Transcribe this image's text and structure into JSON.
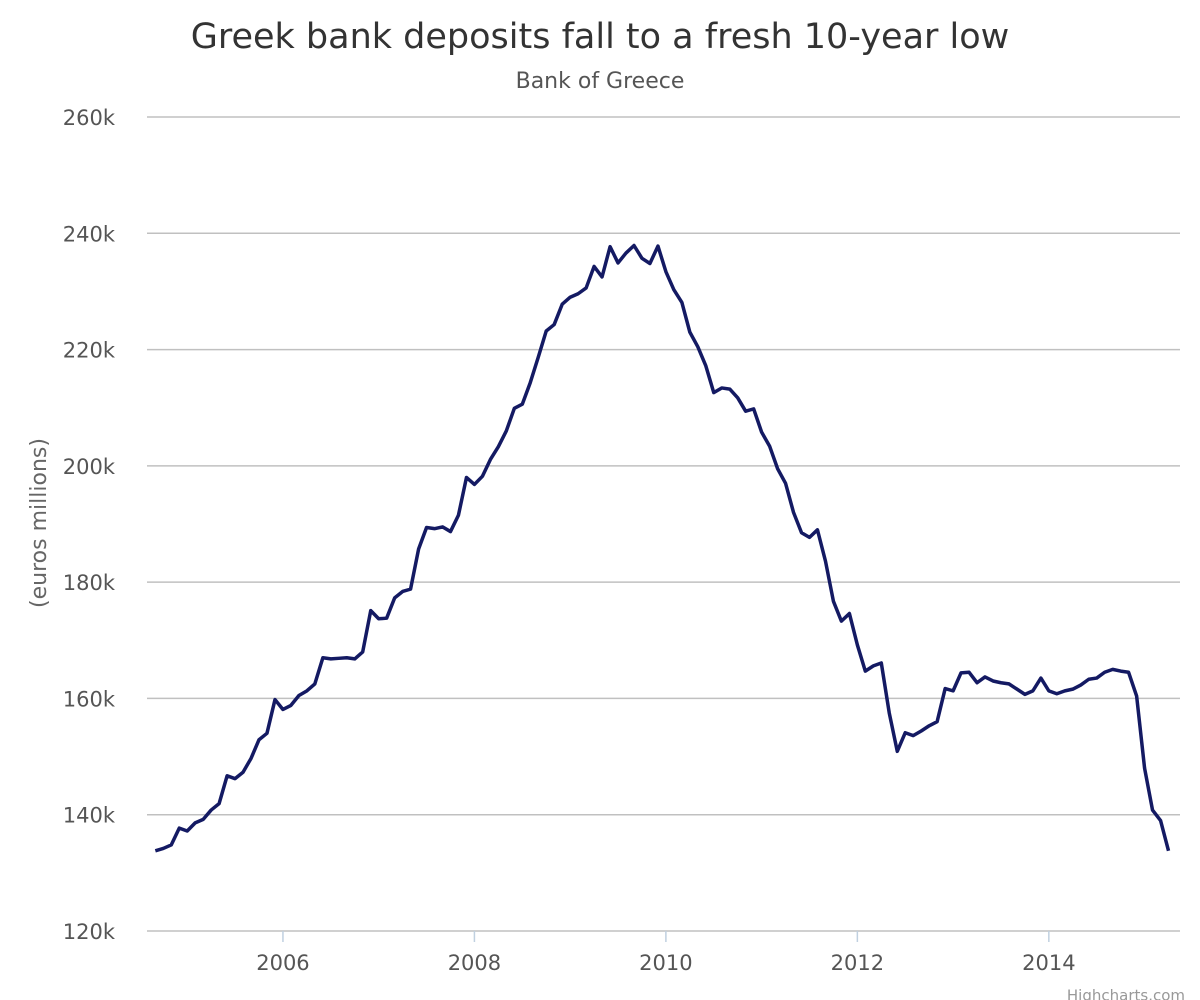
{
  "chart_data": {
    "type": "line",
    "title": "Greek bank deposits fall to a fresh 10-year low",
    "subtitle": "Bank of Greece",
    "y_axis_label": "(euros millions)",
    "credits": "Highcharts.com",
    "color": "#141a63",
    "grid": true,
    "xlim": [
      2004.58,
      2015.37
    ],
    "xticks": [
      2006,
      2008,
      2010,
      2012,
      2014
    ],
    "ylim": [
      120000,
      260000
    ],
    "yticks": [
      {
        "value": 120000,
        "label": "120k"
      },
      {
        "value": 140000,
        "label": "140k"
      },
      {
        "value": 160000,
        "label": "160k"
      },
      {
        "value": 180000,
        "label": "180k"
      },
      {
        "value": 200000,
        "label": "200k"
      },
      {
        "value": 220000,
        "label": "220k"
      },
      {
        "value": 240000,
        "label": "240k"
      },
      {
        "value": 260000,
        "label": "260k"
      }
    ],
    "x": [
      2004.667,
      2004.75,
      2004.833,
      2004.917,
      2005,
      2005.083,
      2005.167,
      2005.25,
      2005.333,
      2005.417,
      2005.5,
      2005.583,
      2005.667,
      2005.75,
      2005.833,
      2005.917,
      2006,
      2006.083,
      2006.167,
      2006.25,
      2006.333,
      2006.417,
      2006.5,
      2006.583,
      2006.667,
      2006.75,
      2006.833,
      2006.917,
      2007,
      2007.083,
      2007.167,
      2007.25,
      2007.333,
      2007.417,
      2007.5,
      2007.583,
      2007.667,
      2007.75,
      2007.833,
      2007.917,
      2008,
      2008.083,
      2008.167,
      2008.25,
      2008.333,
      2008.417,
      2008.5,
      2008.583,
      2008.667,
      2008.75,
      2008.833,
      2008.917,
      2009,
      2009.083,
      2009.167,
      2009.25,
      2009.333,
      2009.417,
      2009.5,
      2009.583,
      2009.667,
      2009.75,
      2009.833,
      2009.917,
      2010,
      2010.083,
      2010.167,
      2010.25,
      2010.333,
      2010.417,
      2010.5,
      2010.583,
      2010.667,
      2010.75,
      2010.833,
      2010.917,
      2011,
      2011.083,
      2011.167,
      2011.25,
      2011.333,
      2011.417,
      2011.5,
      2011.583,
      2011.667,
      2011.75,
      2011.833,
      2011.917,
      2012,
      2012.083,
      2012.167,
      2012.25,
      2012.333,
      2012.417,
      2012.5,
      2012.583,
      2012.667,
      2012.75,
      2012.833,
      2012.917,
      2013,
      2013.083,
      2013.167,
      2013.25,
      2013.333,
      2013.417,
      2013.5,
      2013.583,
      2013.667,
      2013.75,
      2013.833,
      2013.917,
      2014,
      2014.083,
      2014.167,
      2014.25,
      2014.333,
      2014.417,
      2014.5,
      2014.583,
      2014.667,
      2014.75,
      2014.833,
      2014.917,
      2015,
      2015.083,
      2015.167,
      2015.25
    ],
    "values": [
      133800,
      134200,
      134800,
      137700,
      137200,
      138600,
      139200,
      140800,
      141900,
      146700,
      146200,
      147300,
      149700,
      152900,
      154000,
      159800,
      158100,
      158800,
      160500,
      161300,
      162500,
      167000,
      166800,
      166900,
      167000,
      166800,
      168000,
      175100,
      173700,
      173800,
      177300,
      178400,
      178800,
      185700,
      189400,
      189200,
      189500,
      188700,
      191500,
      198000,
      196800,
      198200,
      201100,
      203300,
      206000,
      209900,
      210600,
      214300,
      218700,
      223200,
      224300,
      227800,
      229000,
      229600,
      230600,
      234300,
      232500,
      237700,
      234900,
      236600,
      237900,
      235700,
      234800,
      237800,
      233400,
      230300,
      228100,
      223000,
      220500,
      217200,
      212600,
      213400,
      213200,
      211700,
      209400,
      209800,
      205800,
      203400,
      199500,
      197000,
      192000,
      188500,
      187700,
      189000,
      183600,
      176700,
      173300,
      174600,
      169200,
      164700,
      165600,
      166100,
      157500,
      150900,
      154100,
      153600,
      154400,
      155300,
      156000,
      161700,
      161300,
      164400,
      164500,
      162700,
      163700,
      163000,
      162700,
      162500,
      161600,
      160700,
      161300,
      163500,
      161300,
      160800,
      161300,
      161600,
      162300,
      163300,
      163500,
      164500,
      165000,
      164700,
      164500,
      160400,
      148000,
      140800,
      139000,
      133800
    ]
  }
}
